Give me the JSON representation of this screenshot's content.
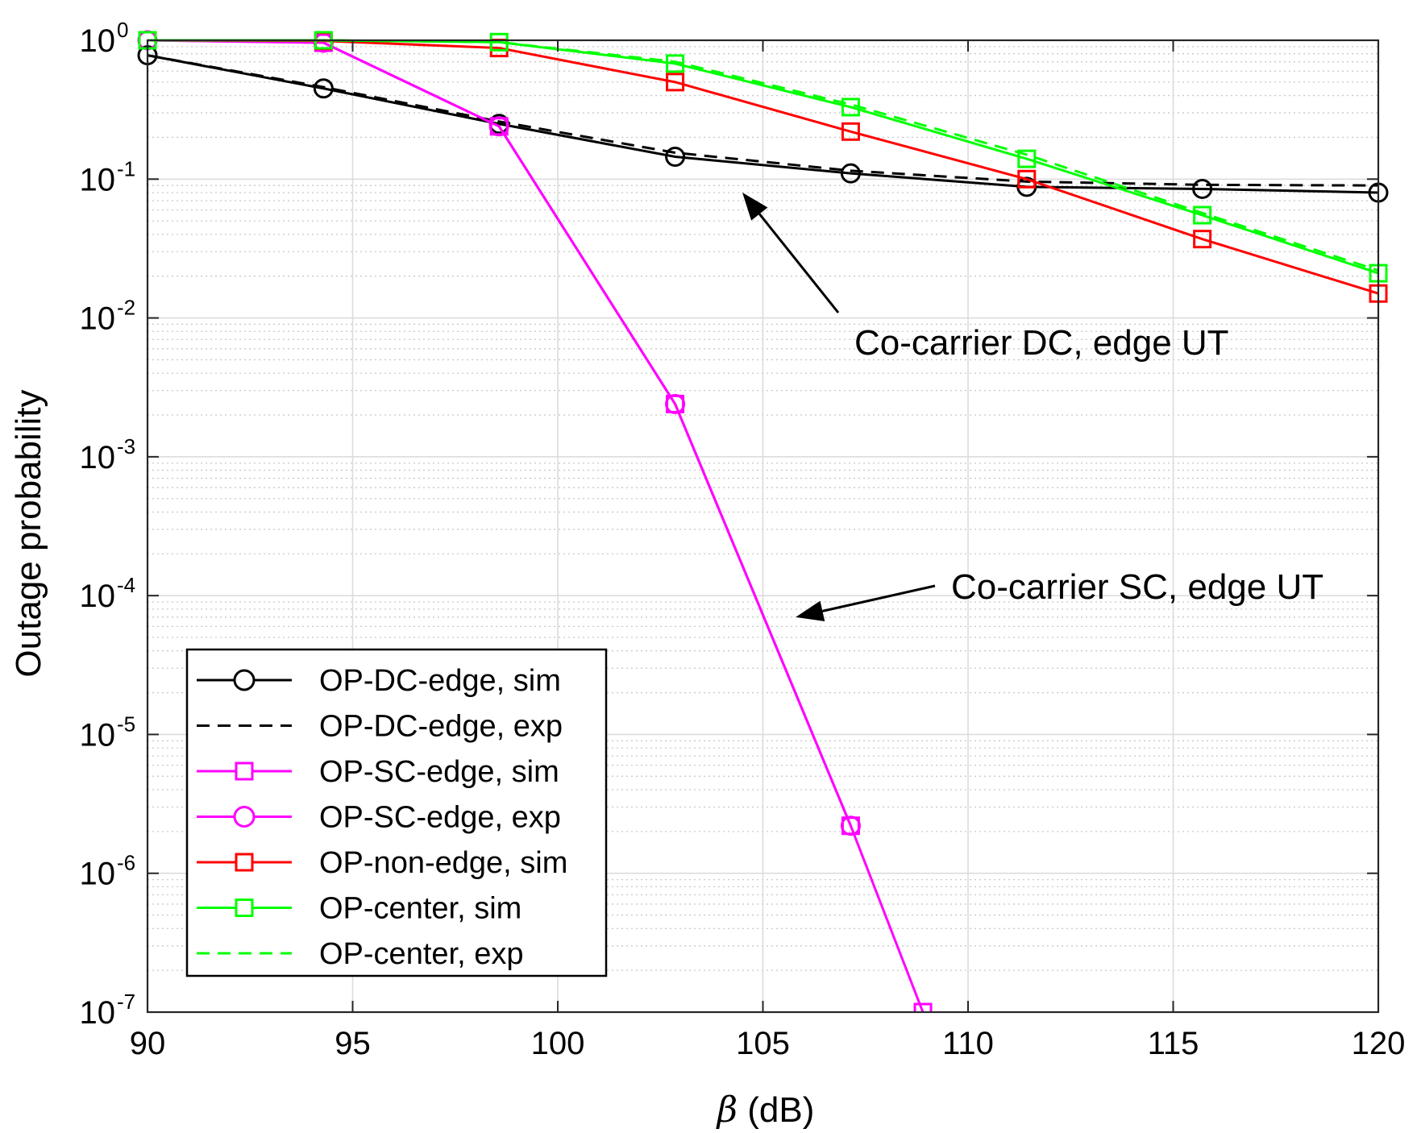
{
  "chart_data": {
    "type": "line",
    "yscale": "log",
    "xlabel_symbol": "β",
    "xlabel_unit": " (dB)",
    "ylabel": "Outage probability",
    "xlim": [
      90,
      120
    ],
    "ylim": [
      1e-07,
      1
    ],
    "grid": true,
    "legend_location": "bottom-left",
    "xticks": [
      90,
      95,
      100,
      105,
      110,
      115,
      120
    ],
    "yticks": [
      {
        "base": "10",
        "exp": "0",
        "value": 1
      },
      {
        "base": "10",
        "exp": "-1",
        "value": 0.1
      },
      {
        "base": "10",
        "exp": "-2",
        "value": 0.01
      },
      {
        "base": "10",
        "exp": "-3",
        "value": 0.001
      },
      {
        "base": "10",
        "exp": "-4",
        "value": 0.0001
      },
      {
        "base": "10",
        "exp": "-5",
        "value": 1e-05
      },
      {
        "base": "10",
        "exp": "-6",
        "value": 1e-06
      },
      {
        "base": "10",
        "exp": "-7",
        "value": 1e-07
      }
    ],
    "series": [
      {
        "name": "OP-DC-edge, sim",
        "color": "#000000",
        "dash": "solid",
        "marker": "circle",
        "x": [
          90,
          94.29,
          98.57,
          102.86,
          107.14,
          111.43,
          115.71,
          120
        ],
        "y": [
          0.78,
          0.45,
          0.25,
          0.145,
          0.11,
          0.088,
          0.085,
          0.08
        ]
      },
      {
        "name": "OP-DC-edge, exp",
        "color": "#000000",
        "dash": "dashed",
        "marker": "none",
        "x": [
          90,
          94.29,
          98.57,
          102.86,
          107.14,
          111.43,
          115.71,
          120
        ],
        "y": [
          0.78,
          0.46,
          0.26,
          0.155,
          0.115,
          0.096,
          0.091,
          0.09
        ]
      },
      {
        "name": "OP-SC-edge, sim",
        "color": "#ff00ff",
        "dash": "solid",
        "marker": "square",
        "x": [
          90,
          94.29,
          98.57,
          102.86,
          107.14,
          108.9
        ],
        "y": [
          1,
          0.96,
          0.24,
          0.0024,
          2.2e-06,
          1e-07
        ]
      },
      {
        "name": "OP-SC-edge, exp",
        "color": "#ff00ff",
        "dash": "solid",
        "marker": "circle",
        "x": [
          90,
          94.29,
          98.57,
          102.86,
          107.14
        ],
        "y": [
          1,
          0.96,
          0.24,
          0.0024,
          2.2e-06
        ]
      },
      {
        "name": "OP-non-edge, sim",
        "color": "#ff0000",
        "dash": "solid",
        "marker": "square",
        "x": [
          90,
          94.29,
          98.57,
          102.86,
          107.14,
          111.43,
          115.71,
          120
        ],
        "y": [
          1,
          0.99,
          0.88,
          0.5,
          0.22,
          0.1,
          0.037,
          0.015
        ]
      },
      {
        "name": "OP-center, sim",
        "color": "#00ff00",
        "dash": "solid",
        "marker": "square",
        "x": [
          90,
          94.29,
          98.57,
          102.86,
          107.14,
          111.43,
          115.71,
          120
        ],
        "y": [
          1,
          1,
          0.97,
          0.68,
          0.33,
          0.14,
          0.055,
          0.021
        ]
      },
      {
        "name": "OP-center, exp",
        "color": "#00ff00",
        "dash": "dashed",
        "marker": "none",
        "x": [
          90,
          94.29,
          98.57,
          102.86,
          107.14,
          111.43,
          115.71,
          120
        ],
        "y": [
          1,
          1,
          0.97,
          0.7,
          0.345,
          0.15,
          0.057,
          0.022
        ]
      }
    ],
    "annotations": [
      {
        "text": "Co-carrier DC, edge UT",
        "arrow_to": {
          "x": 104.5,
          "y": 0.08
        }
      },
      {
        "text": "Co-carrier SC, edge UT",
        "arrow_to": {
          "x": 105.8,
          "y": 7e-05
        }
      }
    ]
  }
}
